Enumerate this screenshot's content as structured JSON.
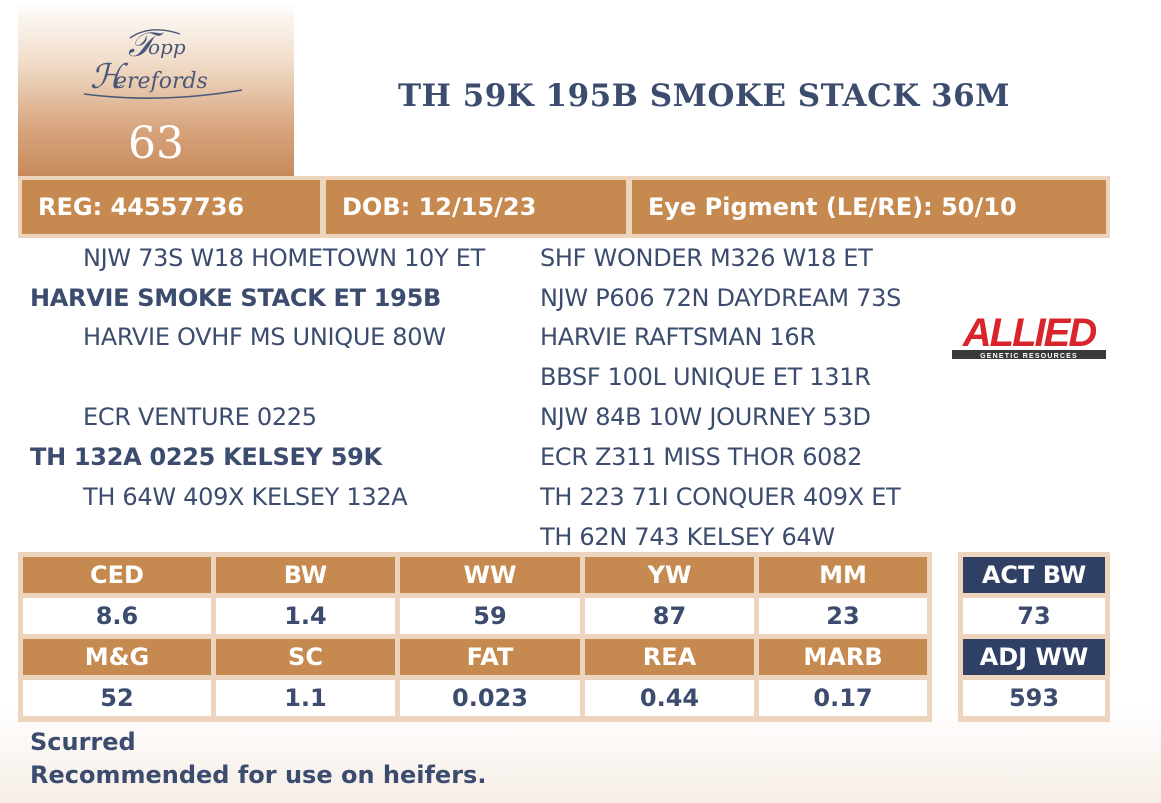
{
  "lot": {
    "logo_text": "Topp Herefords",
    "number": "63",
    "animal_name": "TH 59K 195B SMOKE STACK 36M"
  },
  "info": {
    "reg": "REG: 44557736",
    "dob": "DOB: 12/15/23",
    "eye_pigment": "Eye Pigment (LE/RE): 50/10"
  },
  "pedigree": {
    "left": [
      {
        "text": "NJW 73S W18 HOMETOWN 10Y ET",
        "bold": false
      },
      {
        "text": "HARVIE SMOKE STACK ET 195B",
        "bold": true
      },
      {
        "text": "HARVIE OVHF MS UNIQUE 80W",
        "bold": false
      },
      {
        "text": "ECR VENTURE 0225",
        "bold": false
      },
      {
        "text": "TH 132A 0225 KELSEY 59K",
        "bold": true
      },
      {
        "text": "TH 64W 409X KELSEY 132A",
        "bold": false
      }
    ],
    "right": [
      "SHF WONDER M326 W18 ET",
      "NJW P606 72N DAYDREAM 73S",
      "HARVIE RAFTSMAN 16R",
      "BBSF 100L UNIQUE ET 131R",
      "NJW 84B 10W JOURNEY 53D",
      "ECR Z311 MISS THOR 6082",
      "TH 223 71I CONQUER 409X ET",
      "TH 62N 743 KELSEY 64W"
    ]
  },
  "sponsor_logo": {
    "text": "ALLIED",
    "subtext": "GENETIC RESOURCES"
  },
  "epd": {
    "row1_headers": [
      "CED",
      "BW",
      "WW",
      "YW",
      "MM"
    ],
    "row1_values": [
      "8.6",
      "1.4",
      "59",
      "87",
      "23"
    ],
    "row2_headers": [
      "M&G",
      "SC",
      "FAT",
      "REA",
      "MARB"
    ],
    "row2_values": [
      "52",
      "1.1",
      "0.023",
      "0.44",
      "0.17"
    ]
  },
  "actual": {
    "act_bw_label": "ACT BW",
    "act_bw_value": "73",
    "adj_ww_label": "ADJ WW",
    "adj_ww_value": "593"
  },
  "notes": [
    "Scurred",
    "Recommended for use on heifers."
  ],
  "colors": {
    "accent": "#c6894f",
    "light_accent": "#ecd4bd",
    "navy": "#2f4064",
    "text": "#3c4c6e",
    "allied_red": "#d8242a"
  }
}
